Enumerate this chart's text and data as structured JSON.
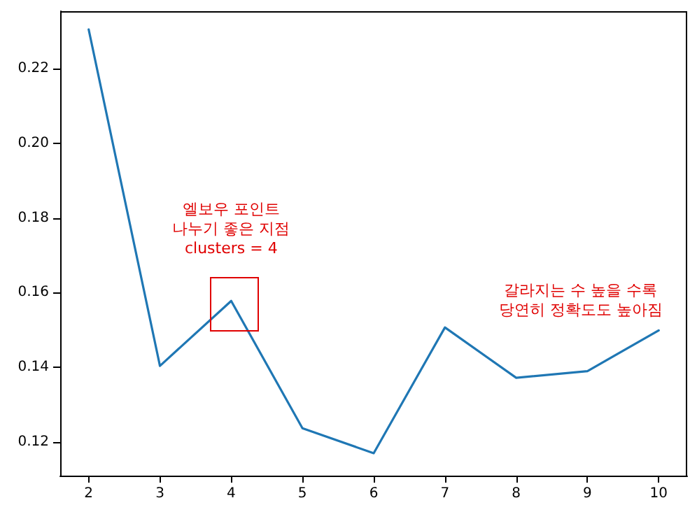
{
  "chart_data": {
    "type": "line",
    "x": [
      2,
      3,
      4,
      5,
      6,
      7,
      8,
      9,
      10
    ],
    "series": [
      {
        "color": "#1f77b4",
        "values": [
          0.2305,
          0.1404,
          0.1578,
          0.1237,
          0.117,
          0.1507,
          0.1372,
          0.139,
          0.1499
        ]
      }
    ],
    "xlim": [
      1.6,
      10.4
    ],
    "xticks": [
      2,
      3,
      4,
      5,
      6,
      7,
      8,
      9,
      10
    ],
    "ylim": [
      0.111,
      0.2354
    ],
    "yticks": [
      0.12,
      0.14,
      0.16,
      0.18,
      {
        "value": 0.2,
        "label": "0.20"
      },
      0.22
    ],
    "grid": false,
    "marker": "none",
    "line_style": "solid",
    "annotations": [
      {
        "text": "엘보우 포인트\n나누기 좋은 지점\nclusters = 4",
        "x": 4,
        "y": 0.1578
      },
      "갈라지는 수 높을 수록\n당연히 정확도도 높아짐"
    ]
  }
}
